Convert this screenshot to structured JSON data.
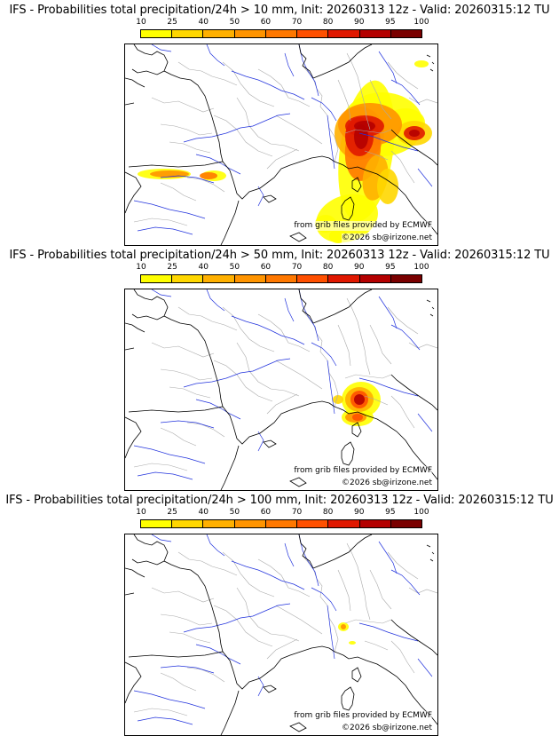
{
  "panels": [
    {
      "title": "IFS - Probabilities total precipitation/24h > 10 mm, Init: 20260313 12z - Valid: 20260315:12 TU",
      "credit_source": "from grib files provided by ECMWF",
      "credit_copyright": "©2026 sb@irizone.net"
    },
    {
      "title": "IFS - Probabilities total precipitation/24h > 50 mm, Init: 20260313 12z - Valid: 20260315:12 TU",
      "credit_source": "from grib files provided by ECMWF",
      "credit_copyright": "©2026 sb@irizone.net"
    },
    {
      "title": "IFS - Probabilities total precipitation/24h > 100 mm, Init: 20260313 12z - Valid: 20260315:12 TU",
      "credit_source": "from grib files provided by ECMWF",
      "credit_copyright": "©2026 sb@irizone.net"
    }
  ],
  "colorbar": {
    "levels": [
      "10",
      "25",
      "40",
      "50",
      "60",
      "70",
      "80",
      "90",
      "95",
      "100"
    ],
    "colors": [
      "#ffff00",
      "#ffd700",
      "#ffb000",
      "#ff9400",
      "#ff7800",
      "#ff5000",
      "#e01800",
      "#b40000",
      "#7a0000"
    ]
  },
  "style": {
    "river_color": "#2233dd",
    "border_color": "#aaaaaa",
    "coast_color": "#000000"
  }
}
